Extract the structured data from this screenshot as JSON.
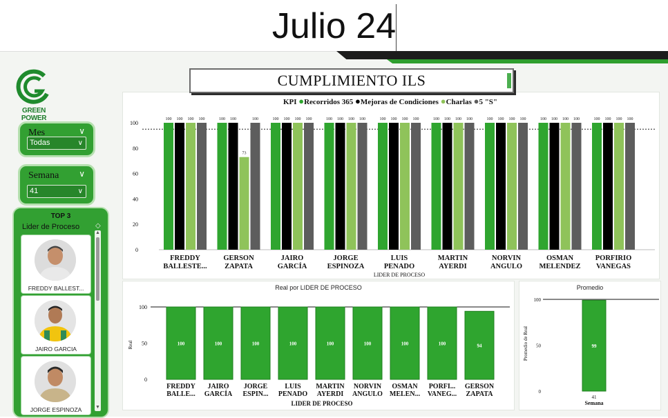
{
  "page": {
    "title": "Julio 24"
  },
  "logo": {
    "text": "GREEN POWER"
  },
  "filters": {
    "mes": {
      "label": "Mes",
      "value": "Todas"
    },
    "semana": {
      "label": "Semana",
      "value": "41"
    }
  },
  "top3": {
    "title": "TOP 3",
    "subtitle": "Lider de Proceso",
    "people": [
      {
        "name": "FREDDY BALLEST...",
        "shirt": "#e9e9e9"
      },
      {
        "name": "JAIRO GARCIA",
        "shirt": "#f1c40f"
      },
      {
        "name": "JORGE ESPINOZA",
        "shirt": "#c8b48a"
      }
    ]
  },
  "header": {
    "title": "CUMPLIMIENTO ILS"
  },
  "colors": {
    "green": "#2fa52f",
    "black": "#000000",
    "lightgreen": "#8fc35a",
    "gray": "#5d5d5d",
    "panel_green": "#32a032"
  },
  "chart_data": [
    {
      "type": "bar",
      "legend_title": "KPI",
      "legend_position": "top",
      "xlabel": "LIDER DE PROCESO",
      "ylabel": "",
      "ylim": [
        0,
        100
      ],
      "yticks": [
        "100",
        "80",
        "60",
        "40",
        "20",
        "0"
      ],
      "reference_line": 95,
      "categories": [
        [
          "FREDDY",
          "BALLESTE..."
        ],
        [
          "GERSON",
          "ZAPATA"
        ],
        [
          "JAIRO",
          "GARCÍA"
        ],
        [
          "JORGE",
          "ESPINOZA"
        ],
        [
          "LUIS",
          "PENADO"
        ],
        [
          "MARTIN",
          "AYERDI"
        ],
        [
          "NORVIN",
          "ANGULO"
        ],
        [
          "OSMAN",
          "MELENDEZ"
        ],
        [
          "PORFIRIO",
          "VANEGAS"
        ]
      ],
      "series": [
        {
          "name": "Recorridos 365",
          "color": "#2fa52f",
          "values": [
            100,
            100,
            100,
            100,
            100,
            100,
            100,
            100,
            100
          ]
        },
        {
          "name": "Mejoras de Condiciones",
          "color": "#000000",
          "values": [
            100,
            100,
            100,
            100,
            100,
            100,
            100,
            100,
            100
          ]
        },
        {
          "name": "Charlas",
          "color": "#8fc35a",
          "values": [
            100,
            73,
            100,
            100,
            100,
            100,
            100,
            100,
            100
          ]
        },
        {
          "name": "5 \"S\"",
          "color": "#5d5d5d",
          "values": [
            100,
            100,
            100,
            100,
            100,
            100,
            100,
            100,
            100
          ]
        }
      ],
      "value_labels": [
        [
          "100",
          "100",
          "100",
          "100"
        ],
        [
          "100",
          "100",
          "73",
          "100"
        ],
        [
          "100",
          "100",
          "100",
          "100"
        ],
        [
          "100",
          "100",
          "100",
          "100"
        ],
        [
          "100",
          "100",
          "100",
          "100"
        ],
        [
          "100",
          "100",
          "100",
          "100"
        ],
        [
          "100",
          "100",
          "100",
          "100"
        ],
        [
          "100",
          "100",
          "100",
          "100"
        ],
        [
          "100",
          "100",
          "100",
          "100"
        ]
      ],
      "legend_labels": [
        "Recorridos 365",
        "Mejoras de Condiciones",
        "Charlas",
        "5 \"S\""
      ]
    },
    {
      "type": "bar",
      "title": "Real por LIDER DE PROCESO",
      "xlabel": "LIDER DE PROCESO",
      "ylabel": "Real",
      "ylim": [
        0,
        100
      ],
      "yticks": [
        "100",
        "50",
        "0"
      ],
      "reference_line": 100,
      "categories": [
        [
          "FREDDY",
          "BALLE..."
        ],
        [
          "JAIRO",
          "GARCÍA"
        ],
        [
          "JORGE",
          "ESPIN..."
        ],
        [
          "LUIS",
          "PENADO"
        ],
        [
          "MARTIN",
          "AYERDI"
        ],
        [
          "NORVIN",
          "ANGULO"
        ],
        [
          "OSMAN",
          "MELEN..."
        ],
        [
          "PORFI...",
          "VANEG..."
        ],
        [
          "GERSON",
          "ZAPATA"
        ]
      ],
      "values": [
        100,
        100,
        100,
        100,
        100,
        100,
        100,
        100,
        94
      ],
      "value_labels": [
        "100",
        "100",
        "100",
        "100",
        "100",
        "100",
        "100",
        "100",
        "94"
      ]
    },
    {
      "type": "bar",
      "title": "Promedio",
      "xlabel": "Semana",
      "ylabel": "Promedio de Real",
      "ylim": [
        0,
        100
      ],
      "yticks": [
        "100",
        "50",
        "0"
      ],
      "reference_line": 100,
      "categories": [
        "41"
      ],
      "values": [
        99
      ],
      "value_labels": [
        "99"
      ]
    }
  ]
}
